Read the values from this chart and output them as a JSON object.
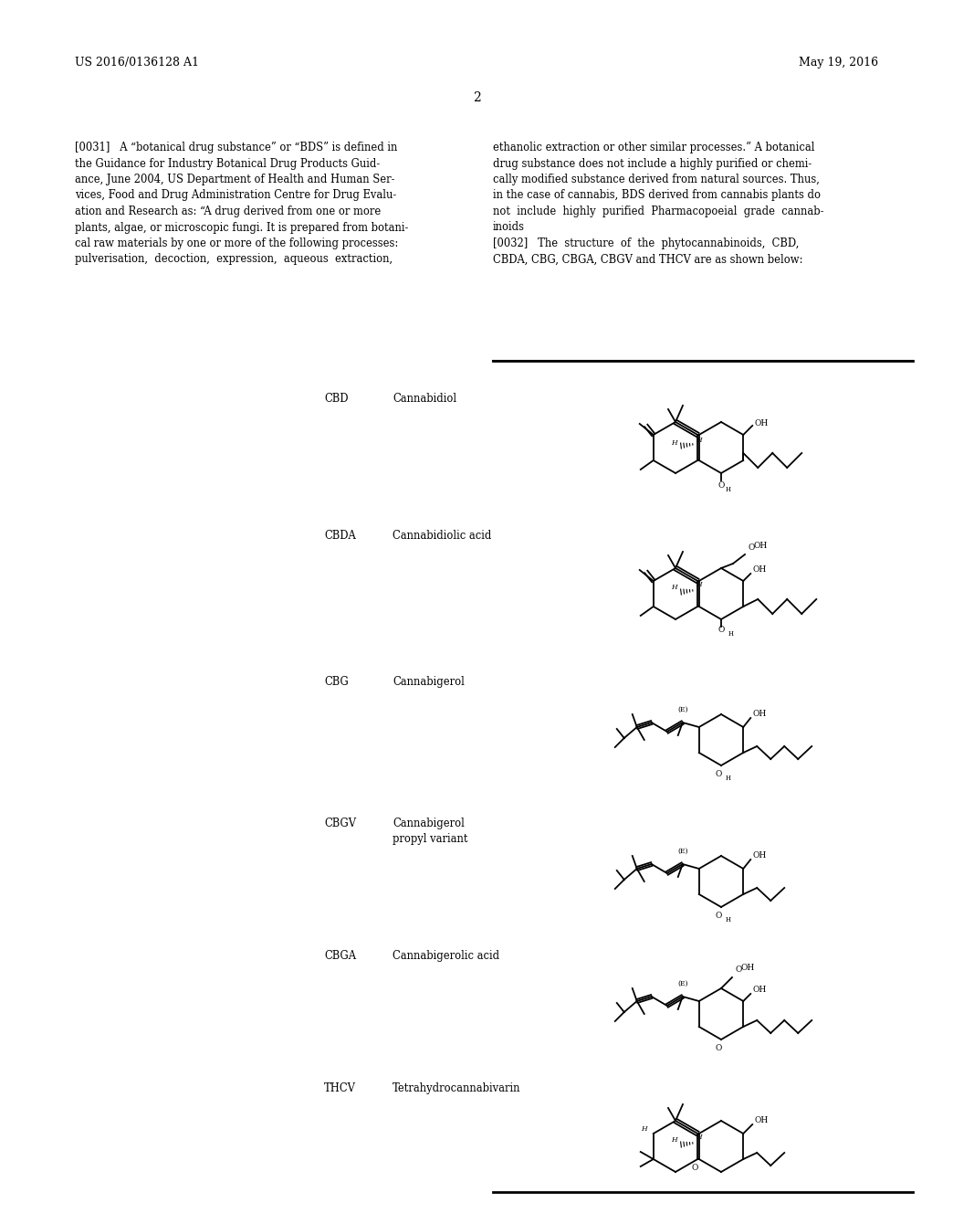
{
  "bg_color": "#ffffff",
  "header_left": "US 2016/0136128 A1",
  "header_right": "May 19, 2016",
  "page_number": "2",
  "para1_label": "[0031]",
  "para1_left": "A “botanical drug substance” or “BDS” is defined in\nthe Guidance for Industry Botanical Drug Products Guid-\nance, June 2004, US Department of Health and Human Ser-\nvices, Food and Drug Administration Centre for Drug Evalu-\nation and Research as: “A drug derived from one or more\nplants, algae, or microscopic fungi. It is prepared from botani-\ncal raw materials by one or more of the following processes:\npulverisation,  decoction,  expression,  aqueous  extraction,",
  "para1_right": "ethanolic extraction or other similar processes.” A botanical\ndrug substance does not include a highly purified or chemi-\ncally modified substance derived from natural sources. Thus,\nin the case of cannabis, BDS derived from cannabis plants do\nnot  include  highly  purified  Pharmacopoeial  grade  cannab-\ninoids\n[0032]   The  structure  of  the  phytocannabinoids,  CBD,\nCBDA, CBG, CBGA, CBGV and THCV are as shown below:",
  "compounds": [
    {
      "abbr": "CBD",
      "name": "Cannabidiol"
    },
    {
      "abbr": "CBDA",
      "name": "Cannabidiolic acid"
    },
    {
      "abbr": "CBG",
      "name": "Cannabigerol"
    },
    {
      "abbr": "CBGV",
      "name": "Cannabigerol\npropyl variant"
    },
    {
      "abbr": "CBGA",
      "name": "Cannabigerolic acid"
    },
    {
      "abbr": "THCV",
      "name": "Tetrahydrocannabivarin"
    }
  ],
  "font_size_header": 9,
  "font_size_body": 8.5,
  "font_size_para_label": 8.5,
  "font_size_compound": 8.5,
  "text_color": "#000000",
  "line_color": "#000000"
}
